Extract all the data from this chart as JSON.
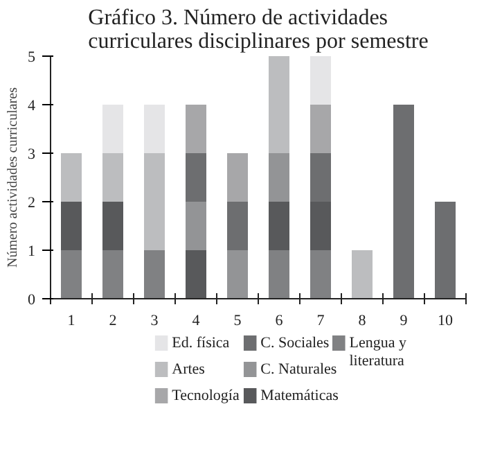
{
  "chart_data": {
    "type": "bar",
    "stacked": true,
    "title": "Gráfico 3. Número de actividades curriculares disciplinares por semestre",
    "ylabel": "Número actividades curriculares",
    "categories": [
      "1",
      "2",
      "3",
      "4",
      "5",
      "6",
      "7",
      "8",
      "9",
      "10"
    ],
    "ylim": [
      0,
      5
    ],
    "yticks": [
      0,
      1,
      2,
      3,
      4,
      5
    ],
    "grid": false,
    "legend": "bottom",
    "series": [
      {
        "name": "Lengua y literatura",
        "color": "#808183",
        "values": [
          1,
          1,
          1,
          null,
          null,
          1,
          1,
          null,
          null,
          null
        ]
      },
      {
        "name": "Matemáticas",
        "color": "#58595b",
        "values": [
          1,
          1,
          null,
          1,
          null,
          1,
          1,
          null,
          null,
          null
        ]
      },
      {
        "name": "C. Naturales",
        "color": "#939496",
        "values": [
          null,
          null,
          null,
          1,
          1,
          1,
          null,
          null,
          null,
          null
        ]
      },
      {
        "name": "C. Sociales",
        "color": "#6d6e70",
        "values": [
          null,
          null,
          null,
          1,
          1,
          null,
          1,
          null,
          4,
          2
        ]
      },
      {
        "name": "Tecnología",
        "color": "#a7a7a9",
        "values": [
          null,
          null,
          null,
          1,
          1,
          null,
          1,
          null,
          null,
          null
        ]
      },
      {
        "name": "Artes",
        "color": "#bcbdbf",
        "values": [
          1,
          1,
          2,
          null,
          null,
          2,
          null,
          1,
          null,
          null
        ]
      },
      {
        "name": "Ed. física",
        "color": "#e5e5e7",
        "values": [
          null,
          1,
          1,
          null,
          null,
          null,
          1,
          null,
          null,
          null
        ]
      }
    ]
  }
}
